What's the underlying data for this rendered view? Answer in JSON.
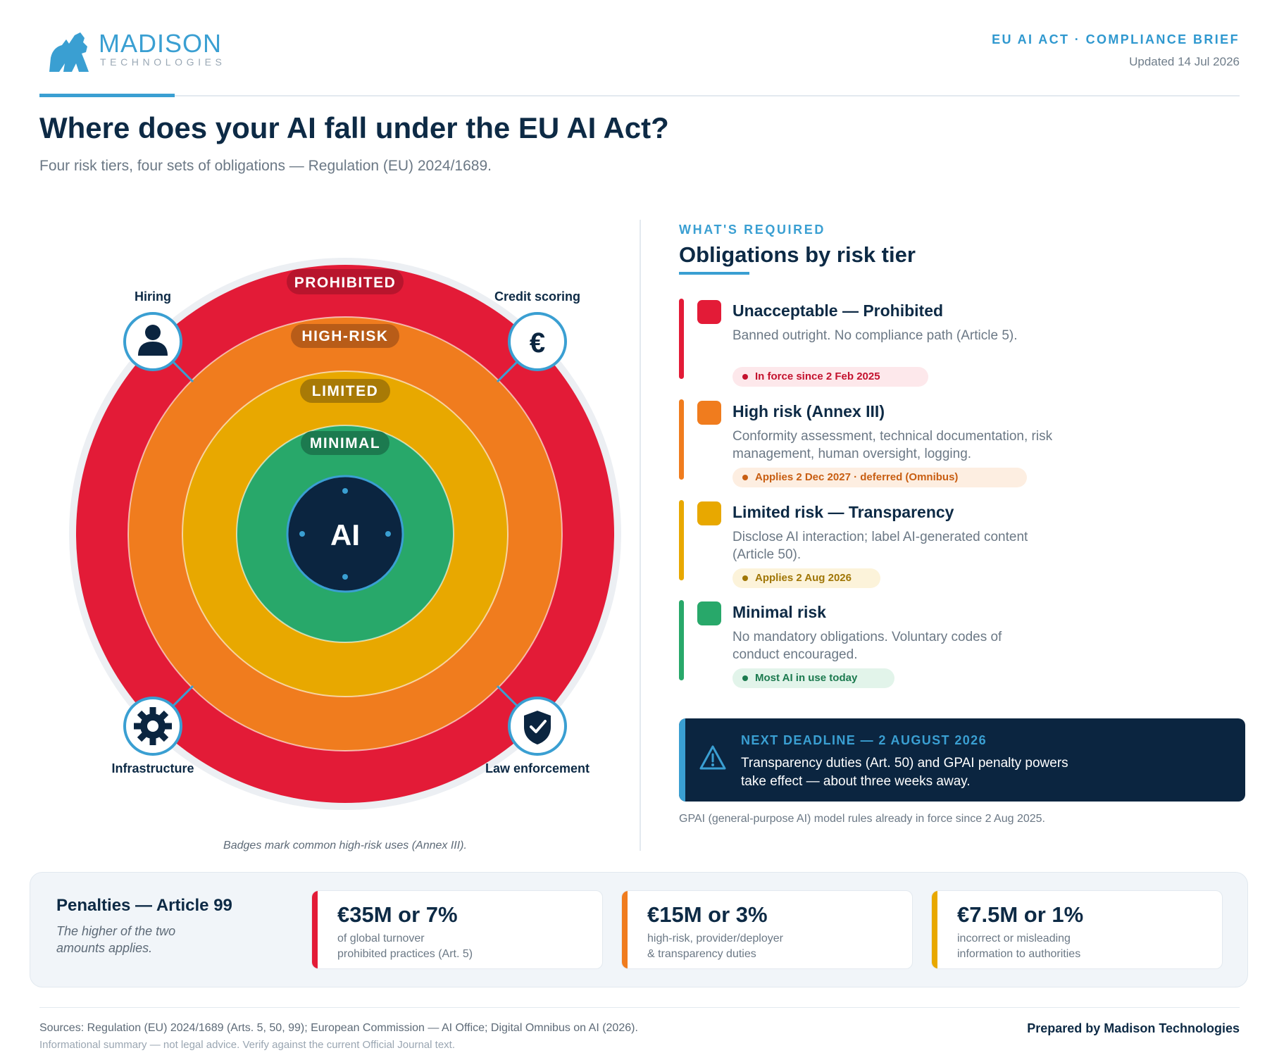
{
  "header": {
    "logo_name": "MADISON",
    "logo_sub": "TECHNOLOGIES",
    "brief_title": "EU AI ACT · COMPLIANCE BRIEF",
    "updated": "Updated 14 Jul 2026"
  },
  "title": "Where does your AI fall under the EU AI Act?",
  "subtitle": "Four risk tiers, four sets of obligations — Regulation (EU) 2024/1689.",
  "diagram": {
    "center_label": "AI",
    "rings": [
      {
        "label": "PROHIBITED",
        "color": "#e31b37",
        "label_bg": "#b8152d"
      },
      {
        "label": "HIGH-RISK",
        "color": "#f07c1e",
        "label_bg": "#b85c18"
      },
      {
        "label": "LIMITED",
        "color": "#e8a800",
        "label_bg": "#a87a06"
      },
      {
        "label": "MINIMAL",
        "color": "#28a86a",
        "label_bg": "#1c7a4f"
      }
    ],
    "badges": [
      {
        "label": "Hiring",
        "icon": "person-icon"
      },
      {
        "label": "Credit scoring",
        "icon": "euro-icon",
        "glyph": "€"
      },
      {
        "label": "Infrastructure",
        "icon": "gear-icon"
      },
      {
        "label": "Law enforcement",
        "icon": "shield-check-icon"
      }
    ],
    "caption": "Badges mark common high-risk uses (Annex III)."
  },
  "obligations": {
    "eyebrow": "WHAT'S REQUIRED",
    "title": "Obligations by risk tier",
    "tiers": [
      {
        "name": "Unacceptable — Prohibited",
        "desc": "Banned outright. No compliance path (Article 5).",
        "status": "In force since 2 Feb 2025",
        "color": "#e31b37",
        "pill_bg": "#fde8eb",
        "pill_fg": "#c4122e"
      },
      {
        "name": "High risk (Annex III)",
        "desc": "Conformity assessment, technical documentation, risk management, human oversight, logging.",
        "status": "Applies 2 Dec 2027 · deferred (Omnibus)",
        "color": "#f07c1e",
        "pill_bg": "#fdeee1",
        "pill_fg": "#c85e12"
      },
      {
        "name": "Limited risk — Transparency",
        "desc": "Disclose AI interaction; label AI-generated content (Article 50).",
        "status": "Applies 2 Aug 2026",
        "color": "#e8a800",
        "pill_bg": "#fcf3da",
        "pill_fg": "#a07606"
      },
      {
        "name": "Minimal risk",
        "desc": "No mandatory obligations. Voluntary codes of conduct encouraged.",
        "status": "Most AI in use today",
        "color": "#28a86a",
        "pill_bg": "#e2f4ea",
        "pill_fg": "#1c7a4f"
      }
    ]
  },
  "deadline": {
    "title": "NEXT DEADLINE — 2 AUGUST 2026",
    "body": "Transparency duties (Art. 50) and GPAI penalty powers take effect — about three weeks away."
  },
  "gpai_note": "GPAI (general-purpose AI) model rules already in force since 2 Aug 2025.",
  "penalties": {
    "title": "Penalties — Article 99",
    "note": "The higher of the two amounts applies.",
    "cards": [
      {
        "amount": "€35M or 7%",
        "line1": "of global turnover",
        "line2": "prohibited practices (Art. 5)",
        "color": "#e31b37"
      },
      {
        "amount": "€15M or 3%",
        "line1": "high-risk, provider/deployer",
        "line2": "& transparency duties",
        "color": "#f07c1e"
      },
      {
        "amount": "€7.5M or 1%",
        "line1": "incorrect or misleading",
        "line2": "information to authorities",
        "color": "#e8a800"
      }
    ]
  },
  "footer": {
    "sources": "Sources: Regulation (EU) 2024/1689 (Arts. 5, 50, 99); European Commission — AI Office; Digital Omnibus on AI (2026).",
    "disclaimer": "Informational summary — not legal advice. Verify against the current Official Journal text.",
    "prepared_by": "Prepared by Madison Technologies"
  }
}
